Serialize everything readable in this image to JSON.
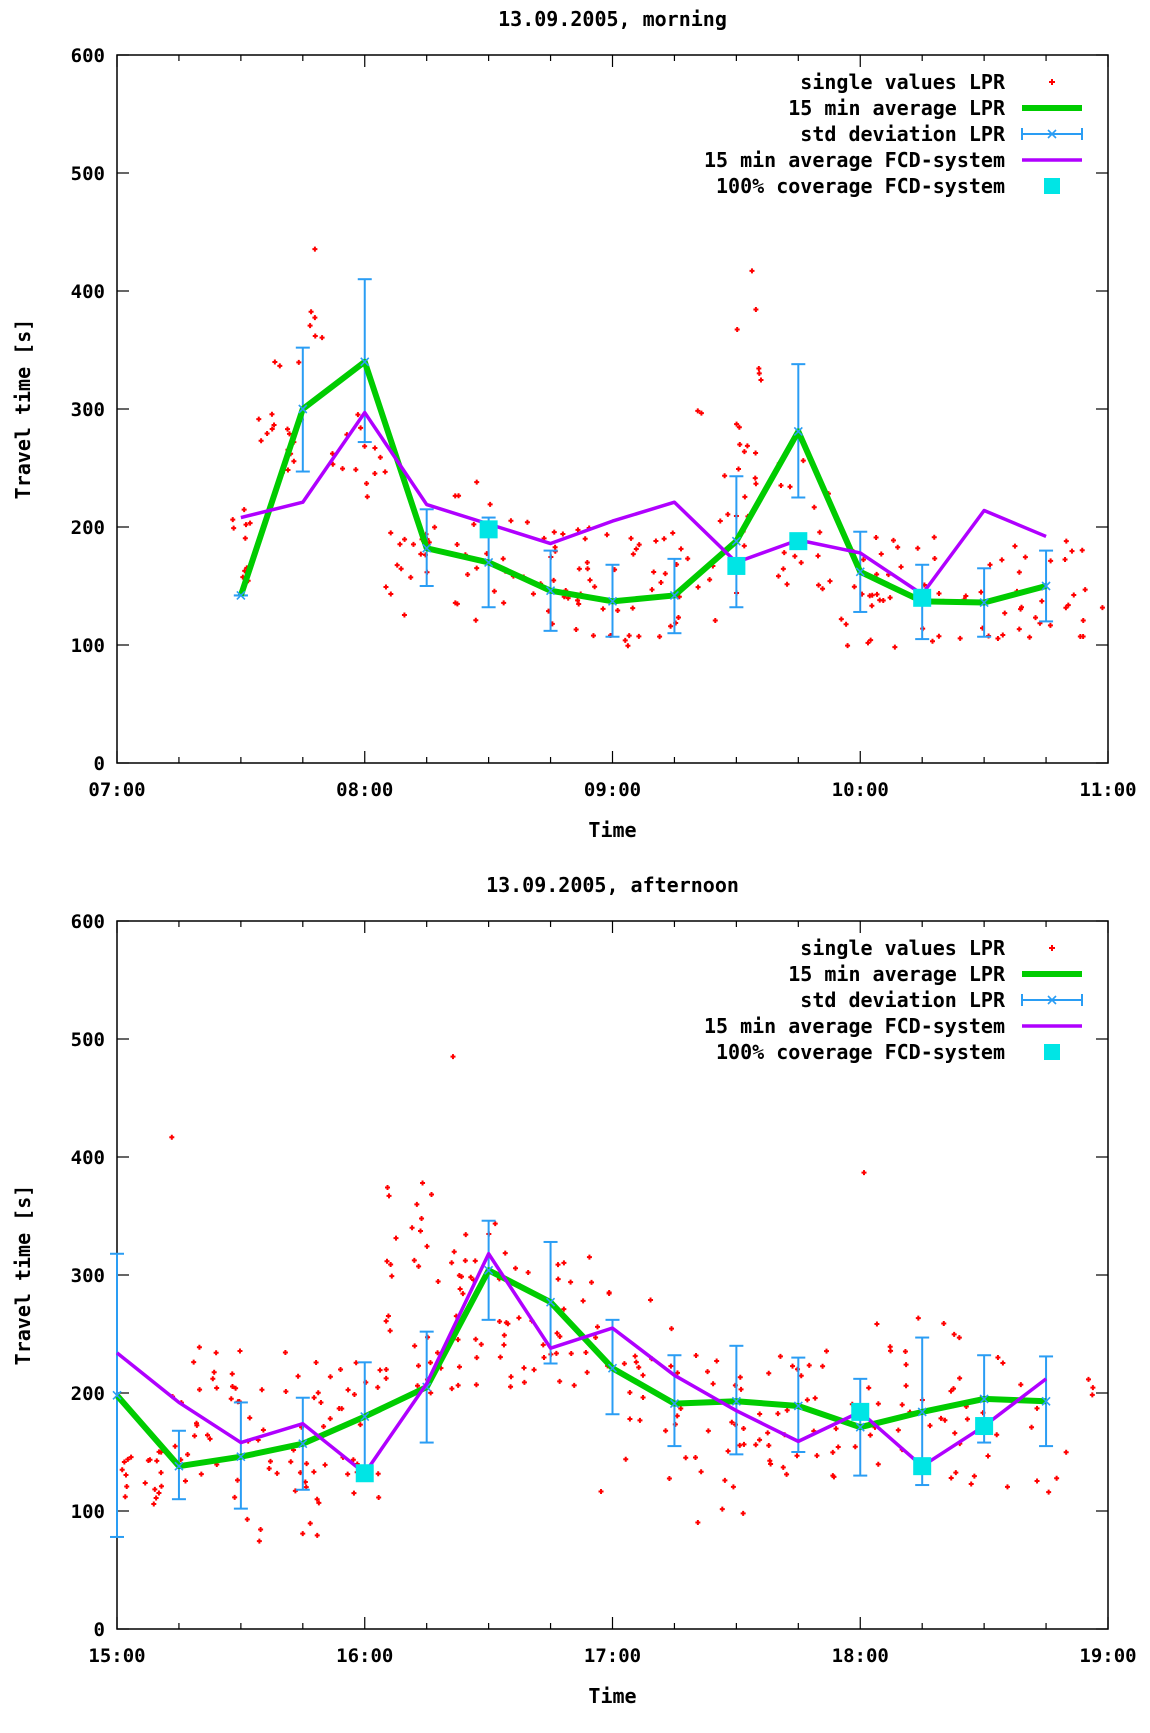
{
  "colors": {
    "single_values": "#ff0000",
    "avg_lpr": "#00cc00",
    "std_dev": "#2a9df4",
    "avg_fcd": "#b000ff",
    "coverage": "#00e5e5"
  },
  "chart_data": [
    {
      "type": "line",
      "title": "13.09.2005, morning",
      "xlabel": "Time",
      "ylabel": "Travel time [s]",
      "xlim": [
        "07:00",
        "11:00"
      ],
      "ylim": [
        0,
        600
      ],
      "xticks": [
        "07:00",
        "08:00",
        "09:00",
        "10:00",
        "11:00"
      ],
      "yticks": [
        0,
        100,
        200,
        300,
        400,
        500,
        600
      ],
      "legend_position": "top-right",
      "legend": [
        "single values LPR",
        "15 min average LPR",
        "std deviation LPR",
        "15 min average FCD-system",
        "100% coverage FCD-system"
      ],
      "avg_lpr": {
        "x": [
          "07:30",
          "07:45",
          "08:00",
          "08:15",
          "08:30",
          "08:45",
          "09:00",
          "09:15",
          "09:30",
          "09:45",
          "10:00",
          "10:15",
          "10:30",
          "10:45"
        ],
        "y": [
          142,
          300,
          340,
          182,
          170,
          146,
          137,
          142,
          188,
          281,
          162,
          137,
          136,
          150
        ]
      },
      "std_dev": {
        "x": [
          "07:30",
          "07:45",
          "08:00",
          "08:15",
          "08:30",
          "08:45",
          "09:00",
          "09:15",
          "09:30",
          "09:45",
          "10:00",
          "10:15",
          "10:30",
          "10:45"
        ],
        "low": [
          142,
          247,
          272,
          150,
          132,
          112,
          107,
          110,
          132,
          225,
          128,
          105,
          107,
          120
        ],
        "high": [
          142,
          352,
          410,
          215,
          208,
          180,
          168,
          173,
          243,
          338,
          196,
          168,
          165,
          180
        ]
      },
      "avg_fcd": {
        "x": [
          "07:30",
          "07:45",
          "08:00",
          "08:15",
          "08:45",
          "09:00",
          "09:15",
          "09:30",
          "09:45",
          "10:00",
          "10:15",
          "10:30",
          "10:45"
        ],
        "y": [
          208,
          221,
          297,
          219,
          186,
          205,
          221,
          170,
          189,
          178,
          143,
          214,
          192
        ]
      },
      "coverage": {
        "x": [
          "08:30",
          "09:30",
          "09:45",
          "10:15"
        ],
        "y": [
          198,
          167,
          188,
          140
        ]
      },
      "scatter_clusters": [
        {
          "x0": "07:27",
          "x1": "07:33",
          "y0": 140,
          "y1": 215,
          "n": 10
        },
        {
          "x0": "07:33",
          "x1": "07:45",
          "y0": 235,
          "y1": 355,
          "n": 18
        },
        {
          "x0": "07:45",
          "x1": "07:52",
          "y0": 360,
          "y1": 440,
          "n": 6
        },
        {
          "x0": "07:52",
          "x1": "08:05",
          "y0": 195,
          "y1": 300,
          "n": 14
        },
        {
          "x0": "08:05",
          "x1": "08:20",
          "y0": 125,
          "y1": 200,
          "n": 18
        },
        {
          "x0": "08:20",
          "x1": "08:40",
          "y0": 120,
          "y1": 240,
          "n": 22
        },
        {
          "x0": "08:40",
          "x1": "09:00",
          "y0": 105,
          "y1": 200,
          "n": 30
        },
        {
          "x0": "09:00",
          "x1": "09:20",
          "y0": 95,
          "y1": 200,
          "n": 26
        },
        {
          "x0": "09:20",
          "x1": "09:35",
          "y0": 120,
          "y1": 300,
          "n": 22
        },
        {
          "x0": "09:30",
          "x1": "09:36",
          "y0": 260,
          "y1": 420,
          "n": 8
        },
        {
          "x0": "09:40",
          "x1": "09:55",
          "y0": 140,
          "y1": 275,
          "n": 18
        },
        {
          "x0": "09:55",
          "x1": "10:20",
          "y0": 95,
          "y1": 195,
          "n": 34
        },
        {
          "x0": "10:20",
          "x1": "10:45",
          "y0": 105,
          "y1": 190,
          "n": 24
        },
        {
          "x0": "10:45",
          "x1": "11:00",
          "y0": 105,
          "y1": 190,
          "n": 14
        }
      ]
    },
    {
      "type": "line",
      "title": "13.09.2005, afternoon",
      "xlabel": "Time",
      "ylabel": "Travel time [s]",
      "xlim": [
        "15:00",
        "19:00"
      ],
      "ylim": [
        0,
        600
      ],
      "xticks": [
        "15:00",
        "16:00",
        "17:00",
        "18:00",
        "19:00"
      ],
      "yticks": [
        0,
        100,
        200,
        300,
        400,
        500,
        600
      ],
      "legend_position": "top-right",
      "legend": [
        "single values LPR",
        "15 min average LPR",
        "std deviation LPR",
        "15 min average FCD-system",
        "100% coverage FCD-system"
      ],
      "avg_lpr": {
        "x": [
          "15:00",
          "15:15",
          "15:30",
          "15:45",
          "16:00",
          "16:15",
          "16:30",
          "16:45",
          "17:00",
          "17:15",
          "17:30",
          "17:45",
          "18:00",
          "18:15",
          "18:30",
          "18:45"
        ],
        "y": [
          198,
          138,
          146,
          157,
          180,
          205,
          304,
          277,
          221,
          191,
          193,
          189,
          171,
          184,
          195,
          193
        ]
      },
      "std_dev": {
        "x": [
          "15:00",
          "15:15",
          "15:30",
          "15:45",
          "16:00",
          "16:15",
          "16:30",
          "16:45",
          "17:00",
          "17:15",
          "17:30",
          "17:45",
          "18:00",
          "18:15",
          "18:30",
          "18:45"
        ],
        "low": [
          78,
          110,
          102,
          118,
          133,
          158,
          262,
          225,
          182,
          155,
          148,
          150,
          130,
          122,
          158,
          155
        ],
        "high": [
          318,
          168,
          192,
          196,
          226,
          252,
          346,
          328,
          262,
          232,
          240,
          230,
          212,
          247,
          232,
          231
        ]
      },
      "avg_fcd": {
        "x": [
          "15:00",
          "15:15",
          "15:30",
          "15:45",
          "16:00",
          "16:15",
          "16:30",
          "16:45",
          "17:00",
          "17:15",
          "17:30",
          "17:45",
          "18:00",
          "18:15",
          "18:30",
          "18:45"
        ],
        "y": [
          234,
          192,
          158,
          174,
          132,
          208,
          318,
          238,
          255,
          215,
          185,
          159,
          184,
          138,
          172,
          212
        ]
      },
      "coverage": {
        "x": [
          "16:00",
          "18:00",
          "18:15",
          "18:30"
        ],
        "y": [
          132,
          184,
          138,
          172
        ]
      },
      "scatter_clusters": [
        {
          "x0": "15:00",
          "x1": "15:12",
          "y0": 105,
          "y1": 150,
          "n": 18
        },
        {
          "x0": "15:10",
          "x1": "15:30",
          "y0": 110,
          "y1": 240,
          "n": 30
        },
        {
          "x0": "15:13",
          "x1": "15:15",
          "y0": 410,
          "y1": 420,
          "n": 1
        },
        {
          "x0": "15:30",
          "x1": "15:50",
          "y0": 70,
          "y1": 240,
          "n": 32
        },
        {
          "x0": "15:50",
          "x1": "16:05",
          "y0": 110,
          "y1": 240,
          "n": 22
        },
        {
          "x0": "16:05",
          "x1": "16:20",
          "y0": 200,
          "y1": 390,
          "n": 30
        },
        {
          "x0": "16:20",
          "x1": "16:35",
          "y0": 200,
          "y1": 350,
          "n": 30
        },
        {
          "x0": "16:20",
          "x1": "16:22",
          "y0": 485,
          "y1": 490,
          "n": 1
        },
        {
          "x0": "16:35",
          "x1": "16:55",
          "y0": 200,
          "y1": 320,
          "n": 30
        },
        {
          "x0": "16:55",
          "x1": "17:15",
          "y0": 110,
          "y1": 290,
          "n": 22
        },
        {
          "x0": "17:15",
          "x1": "17:40",
          "y0": 90,
          "y1": 240,
          "n": 34
        },
        {
          "x0": "17:40",
          "x1": "18:00",
          "y0": 120,
          "y1": 240,
          "n": 24
        },
        {
          "x0": "17:58",
          "x1": "18:01",
          "y0": 382,
          "y1": 387,
          "n": 1
        },
        {
          "x0": "18:00",
          "x1": "18:25",
          "y0": 120,
          "y1": 280,
          "n": 32
        },
        {
          "x0": "18:25",
          "x1": "18:58",
          "y0": 115,
          "y1": 235,
          "n": 22
        }
      ]
    }
  ]
}
